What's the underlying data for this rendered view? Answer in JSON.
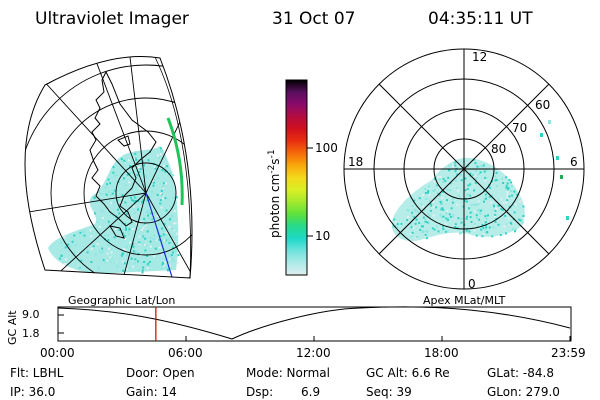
{
  "header": {
    "instrument": "Ultraviolet Imager",
    "date": "31 Oct 07",
    "time": "04:35:11 UT"
  },
  "colorbar": {
    "label_main": "photon cm",
    "label_exp1": "-2",
    "label_mid": "s",
    "label_exp2": "-1",
    "ticks": [
      "100",
      "10"
    ],
    "colors": [
      "#000000",
      "#5a0f5f",
      "#8a0b6a",
      "#b30c40",
      "#d0101e",
      "#e83010",
      "#f56a0a",
      "#f9a80c",
      "#f4d81b",
      "#d9ee25",
      "#a4e92e",
      "#5ee13b",
      "#26d98d",
      "#1ed9c6",
      "#6ee2dd",
      "#aeeae8",
      "#dfeff0"
    ]
  },
  "left_map": {
    "caption": "Geographic Lat/Lon",
    "data_color": "#5fd7cf",
    "coast_color": "#000000",
    "edge_color": "#22c35b",
    "meridian_color": "#1a2fd0"
  },
  "right_map": {
    "caption": "Apex MLat/MLT",
    "mlt_labels": {
      "top": "12",
      "left": "18",
      "right": "6",
      "bottom": "0"
    },
    "lat_labels": [
      "60",
      "70",
      "80"
    ]
  },
  "timeline": {
    "ylabel": "GC Alt",
    "yticks": [
      "9.0",
      "1.8"
    ],
    "xticks": [
      "00:00",
      "06:00",
      "12:00",
      "18:00",
      "23:59"
    ],
    "marker_color": "#cc0000",
    "current_hour": 4.587
  },
  "status": {
    "row1": {
      "filter": "Flt: LBHL",
      "door": "Door: Open",
      "mode": "Mode: Normal",
      "gc_alt": "GC Alt: 6.6 Re",
      "glat": "GLat: -84.8"
    },
    "row2": {
      "ip": "IP: 36.0",
      "gain": "Gain: 14",
      "dsp_label": "Dsp:",
      "dsp_value": "6.9",
      "seq": "Seq: 39",
      "glon": "GLon: 279.0"
    }
  }
}
